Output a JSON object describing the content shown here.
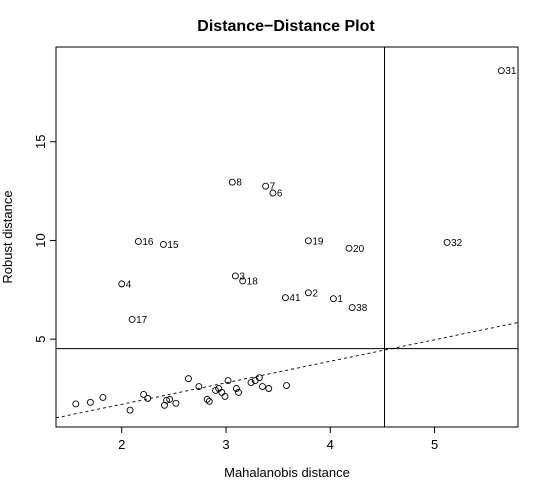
{
  "chart_data": {
    "type": "scatter",
    "title": "Distance−Distance Plot",
    "xlabel": "Mahalanobis distance",
    "ylabel": "Robust distance",
    "xlim": [
      1.37,
      5.8
    ],
    "ylim": [
      0.55,
      19.8
    ],
    "xticks": [
      2,
      3,
      4,
      5
    ],
    "yticks": [
      5,
      10,
      15
    ],
    "cutoff_x": 4.52,
    "cutoff_y": 4.52,
    "ref_line": {
      "intercept": -0.48,
      "slope": 1.09,
      "style": "dashed"
    },
    "labeled_points": [
      {
        "label": "31",
        "x": 5.64,
        "y": 18.6
      },
      {
        "label": "8",
        "x": 3.06,
        "y": 12.95
      },
      {
        "label": "7",
        "x": 3.38,
        "y": 12.75
      },
      {
        "label": "6",
        "x": 3.45,
        "y": 12.4
      },
      {
        "label": "16",
        "x": 2.16,
        "y": 9.95
      },
      {
        "label": "15",
        "x": 2.4,
        "y": 9.8
      },
      {
        "label": "19",
        "x": 3.79,
        "y": 9.98
      },
      {
        "label": "20",
        "x": 4.18,
        "y": 9.6
      },
      {
        "label": "32",
        "x": 5.12,
        "y": 9.9
      },
      {
        "label": "3",
        "x": 3.09,
        "y": 8.2
      },
      {
        "label": "18",
        "x": 3.16,
        "y": 7.95
      },
      {
        "label": "4",
        "x": 2.0,
        "y": 7.8
      },
      {
        "label": "2",
        "x": 3.79,
        "y": 7.35
      },
      {
        "label": "41",
        "x": 3.57,
        "y": 7.1
      },
      {
        "label": "1",
        "x": 4.03,
        "y": 7.05
      },
      {
        "label": "38",
        "x": 4.21,
        "y": 6.6
      },
      {
        "label": "17",
        "x": 2.1,
        "y": 6.0
      }
    ],
    "points": [
      {
        "x": 1.56,
        "y": 1.72
      },
      {
        "x": 1.7,
        "y": 1.8
      },
      {
        "x": 1.82,
        "y": 2.05
      },
      {
        "x": 2.08,
        "y": 1.4
      },
      {
        "x": 2.21,
        "y": 2.2
      },
      {
        "x": 2.25,
        "y": 2.0
      },
      {
        "x": 2.41,
        "y": 1.65
      },
      {
        "x": 2.43,
        "y": 1.9
      },
      {
        "x": 2.46,
        "y": 1.95
      },
      {
        "x": 2.52,
        "y": 1.75
      },
      {
        "x": 2.64,
        "y": 3.0
      },
      {
        "x": 2.74,
        "y": 2.6
      },
      {
        "x": 2.82,
        "y": 1.95
      },
      {
        "x": 2.84,
        "y": 1.85
      },
      {
        "x": 2.9,
        "y": 2.4
      },
      {
        "x": 2.93,
        "y": 2.5
      },
      {
        "x": 2.96,
        "y": 2.3
      },
      {
        "x": 2.99,
        "y": 2.1
      },
      {
        "x": 3.02,
        "y": 2.9
      },
      {
        "x": 3.1,
        "y": 2.5
      },
      {
        "x": 3.12,
        "y": 2.3
      },
      {
        "x": 3.24,
        "y": 2.8
      },
      {
        "x": 3.28,
        "y": 2.9
      },
      {
        "x": 3.32,
        "y": 3.05
      },
      {
        "x": 3.35,
        "y": 2.6
      },
      {
        "x": 3.41,
        "y": 2.5
      },
      {
        "x": 3.58,
        "y": 2.65
      }
    ]
  }
}
